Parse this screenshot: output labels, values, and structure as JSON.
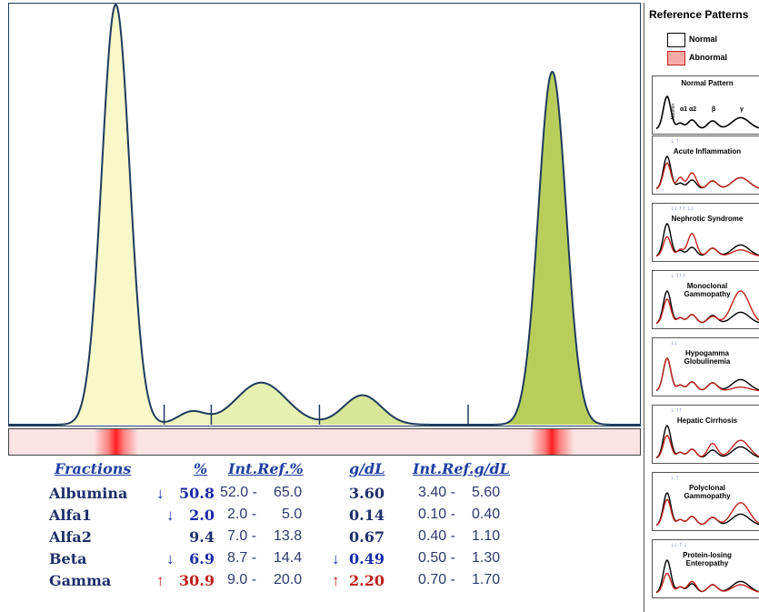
{
  "chart_data": {
    "type": "area",
    "title": "",
    "xlabel": "",
    "ylabel": "",
    "fractions": [
      "Albumina",
      "Alfa1",
      "Alfa2",
      "Beta",
      "Gamma"
    ],
    "series": [
      {
        "name": "Albumina",
        "peak_position": 0.17,
        "relative_height": 1.0,
        "color": "#f8f8c8"
      },
      {
        "name": "Alfa1",
        "peak_position": 0.29,
        "relative_height": 0.03,
        "color": "#f0f4c0"
      },
      {
        "name": "Alfa2",
        "peak_position": 0.4,
        "relative_height": 0.1,
        "color": "#e6f0b0"
      },
      {
        "name": "Beta",
        "peak_position": 0.56,
        "relative_height": 0.07,
        "color": "#d8e698"
      },
      {
        "name": "Gamma",
        "peak_position": 0.86,
        "relative_height": 0.84,
        "color": "#b7cf5a"
      }
    ],
    "band_positions": [
      0.17,
      0.86
    ],
    "grid": false
  },
  "colors": {
    "curve_line": "#1e3b5c",
    "gel_base": "#fbe3e3",
    "gel_band": "#ff2020",
    "header_blue": "#1f3fa0",
    "down_arrow": "#1a2ba6",
    "up_arrow": "#c01d1d",
    "abnormal": "#f4aaa6",
    "abnormal_curve": "#c0231b"
  },
  "table": {
    "headers": {
      "fractions": "Fractions",
      "pct": "%",
      "ref_pct": "Int.Ref.%",
      "gdl": "g/dL",
      "ref_gdl": "Int.Ref.g/dL"
    },
    "rows": [
      {
        "name": "Albumina",
        "pct_arrow": "↓",
        "pct_flag": "low",
        "pct": "50.8",
        "ref_pct_lo": "52.0 -",
        "ref_pct_hi": "65.0",
        "gdl_arrow": "",
        "gdl_flag": "normal",
        "gdl": "3.60",
        "ref_gdl_lo": "3.40 -",
        "ref_gdl_hi": "5.60"
      },
      {
        "name": "Alfa1",
        "pct_arrow": "↓",
        "pct_flag": "low",
        "pct": "2.0",
        "ref_pct_lo": "2.0 -",
        "ref_pct_hi": "5.0",
        "gdl_arrow": "",
        "gdl_flag": "normal",
        "gdl": "0.14",
        "ref_gdl_lo": "0.10 -",
        "ref_gdl_hi": "0.40"
      },
      {
        "name": "Alfa2",
        "pct_arrow": "",
        "pct_flag": "normal",
        "pct": "9.4",
        "ref_pct_lo": "7.0 -",
        "ref_pct_hi": "13.8",
        "gdl_arrow": "",
        "gdl_flag": "normal",
        "gdl": "0.67",
        "ref_gdl_lo": "0.40 -",
        "ref_gdl_hi": "1.10"
      },
      {
        "name": "Beta",
        "pct_arrow": "↓",
        "pct_flag": "low",
        "pct": "6.9",
        "ref_pct_lo": "8.7 -",
        "ref_pct_hi": "14.4",
        "gdl_arrow": "↓",
        "gdl_flag": "low",
        "gdl": "0.49",
        "ref_gdl_lo": "0.50 -",
        "ref_gdl_hi": "1.30"
      },
      {
        "name": "Gamma",
        "pct_arrow": "↑",
        "pct_flag": "high",
        "pct": "30.9",
        "ref_pct_lo": "9.0 -",
        "ref_pct_hi": "20.0",
        "gdl_arrow": "↑",
        "gdl_flag": "high",
        "gdl": "2.20",
        "ref_gdl_lo": "0.70 -",
        "ref_gdl_hi": "1.70"
      }
    ]
  },
  "reference_panel": {
    "title": "Reference Patterns",
    "legend": {
      "normal": "Normal",
      "abnormal": "Abnormal"
    },
    "normal_pattern_title": "Normal Pattern",
    "normal_pattern_labels": [
      "Albumin",
      "α1",
      "α2",
      "β",
      "γ"
    ],
    "patterns": [
      {
        "title": "Acute Inflammation",
        "markers": "↓ ↑"
      },
      {
        "title": "Nephrotic Syndrome",
        "markers": "↓↓ ↑↑ ↓↓"
      },
      {
        "title": "Monoclonal Gammopathy",
        "markers": "↓ ↑↑↑"
      },
      {
        "title": "Hypogamma Globulinemia",
        "markers": "↓↓"
      },
      {
        "title": "Hepatic Cirrhosis",
        "markers": "↓ ↑↑"
      },
      {
        "title": "Polyclonal Gammopathy",
        "markers": "↓ ↑"
      },
      {
        "title": "Protein-losing Enteropathy",
        "markers": "↓↓ ↑ ↓"
      }
    ]
  }
}
